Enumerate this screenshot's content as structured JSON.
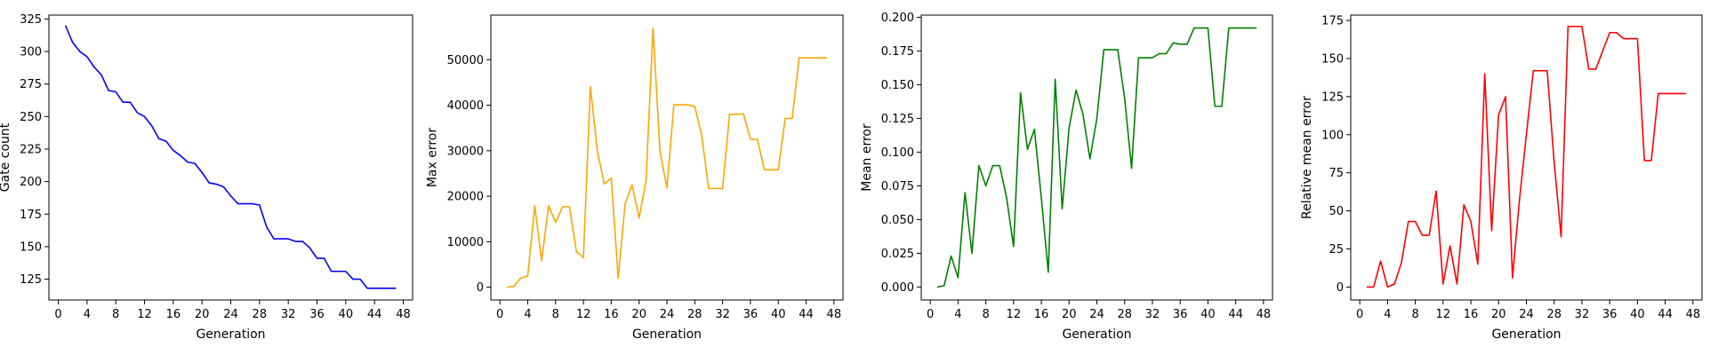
{
  "chart_data": [
    {
      "type": "line",
      "xlabel": "Generation",
      "ylabel": "Gate count",
      "color": "#0000ff",
      "x_ticks": [
        0,
        4,
        8,
        12,
        16,
        20,
        24,
        28,
        32,
        36,
        40,
        44,
        48
      ],
      "y_ticks": [
        125,
        150,
        175,
        200,
        225,
        250,
        275,
        300,
        325
      ],
      "xlim": [
        -1.3,
        49.3
      ],
      "ylim": [
        109,
        328
      ],
      "grid": false,
      "x": [
        1,
        2,
        3,
        4,
        5,
        6,
        7,
        8,
        9,
        10,
        11,
        12,
        13,
        14,
        15,
        16,
        17,
        18,
        19,
        20,
        21,
        22,
        23,
        24,
        25,
        26,
        27,
        28,
        29,
        30,
        31,
        32,
        33,
        34,
        35,
        36,
        37,
        38,
        39,
        40,
        41,
        42,
        43,
        44,
        45,
        46,
        47
      ],
      "y": [
        320,
        307,
        300,
        296,
        288,
        282,
        270,
        269,
        261,
        261,
        253,
        250,
        243,
        233,
        231,
        224,
        220,
        215,
        214,
        207,
        199,
        198,
        196,
        189,
        183,
        183,
        183,
        182,
        165,
        156,
        156,
        156,
        154,
        154,
        149,
        141,
        141,
        131,
        131,
        131,
        125,
        125,
        118,
        118,
        118,
        118,
        118
      ]
    },
    {
      "type": "line",
      "xlabel": "Generation",
      "ylabel": "Max error",
      "color": "#ffa500",
      "x_ticks": [
        0,
        4,
        8,
        12,
        16,
        20,
        24,
        28,
        32,
        36,
        40,
        44,
        48
      ],
      "y_ticks": [
        0,
        10000,
        20000,
        30000,
        40000,
        50000
      ],
      "xlim": [
        -1.3,
        49.3
      ],
      "ylim": [
        -2800,
        59800
      ],
      "grid": false,
      "x": [
        1,
        2,
        3,
        4,
        5,
        6,
        7,
        8,
        9,
        10,
        11,
        12,
        13,
        14,
        15,
        16,
        17,
        18,
        19,
        20,
        21,
        22,
        23,
        24,
        25,
        26,
        27,
        28,
        29,
        30,
        31,
        32,
        33,
        34,
        35,
        36,
        37,
        38,
        39,
        40,
        41,
        42,
        43,
        44,
        45,
        46,
        47
      ],
      "y": [
        0,
        200,
        2000,
        2500,
        17900,
        5800,
        17900,
        14200,
        17700,
        17700,
        7800,
        6500,
        44100,
        30000,
        22700,
        24000,
        2000,
        18400,
        22500,
        15200,
        23500,
        56900,
        29800,
        21800,
        40100,
        40100,
        40100,
        39700,
        33300,
        21700,
        21700,
        21700,
        38000,
        38000,
        38100,
        32500,
        32500,
        25800,
        25800,
        25800,
        37100,
        37100,
        50400,
        50400,
        50400,
        50400,
        50400
      ]
    },
    {
      "type": "line",
      "xlabel": "Generation",
      "ylabel": "Mean error",
      "color": "#008000",
      "x_ticks": [
        0,
        4,
        8,
        12,
        16,
        20,
        24,
        28,
        32,
        36,
        40,
        44,
        48
      ],
      "y_ticks": [
        0.0,
        0.025,
        0.05,
        0.075,
        0.1,
        0.125,
        0.15,
        0.175,
        0.2
      ],
      "xlim": [
        -1.3,
        49.3
      ],
      "ylim": [
        -0.0096,
        0.2016
      ],
      "grid": false,
      "x": [
        1,
        2,
        3,
        4,
        5,
        6,
        7,
        8,
        9,
        10,
        11,
        12,
        13,
        14,
        15,
        16,
        17,
        18,
        19,
        20,
        21,
        22,
        23,
        24,
        25,
        26,
        27,
        28,
        29,
        30,
        31,
        32,
        33,
        34,
        35,
        36,
        37,
        38,
        39,
        40,
        41,
        42,
        43,
        44,
        45,
        46,
        47
      ],
      "y": [
        0,
        0.001,
        0.023,
        0.007,
        0.07,
        0.025,
        0.09,
        0.075,
        0.09,
        0.09,
        0.066,
        0.03,
        0.144,
        0.102,
        0.117,
        0.066,
        0.011,
        0.154,
        0.058,
        0.118,
        0.146,
        0.128,
        0.095,
        0.125,
        0.176,
        0.176,
        0.176,
        0.14,
        0.088,
        0.17,
        0.17,
        0.17,
        0.173,
        0.173,
        0.181,
        0.18,
        0.18,
        0.192,
        0.192,
        0.192,
        0.134,
        0.134,
        0.192,
        0.192,
        0.192,
        0.192,
        0.192
      ]
    },
    {
      "type": "line",
      "xlabel": "Generation",
      "ylabel": "Relative mean error",
      "color": "#ff0000",
      "x_ticks": [
        0,
        4,
        8,
        12,
        16,
        20,
        24,
        28,
        32,
        36,
        40,
        44,
        48
      ],
      "y_ticks": [
        0,
        25,
        50,
        75,
        100,
        125,
        150,
        175
      ],
      "xlim": [
        -1.3,
        49.3
      ],
      "ylim": [
        -8.5,
        178.5
      ],
      "grid": false,
      "x": [
        1,
        2,
        3,
        4,
        5,
        6,
        7,
        8,
        9,
        10,
        11,
        12,
        13,
        14,
        15,
        16,
        17,
        18,
        19,
        20,
        21,
        22,
        23,
        24,
        25,
        26,
        27,
        28,
        29,
        30,
        31,
        32,
        33,
        34,
        35,
        36,
        37,
        38,
        39,
        40,
        41,
        42,
        43,
        44,
        45,
        46,
        47
      ],
      "y": [
        0,
        0,
        17,
        0,
        2,
        16,
        43,
        43,
        34,
        34,
        63,
        2,
        27,
        2,
        54,
        43,
        15,
        140,
        37,
        113,
        125,
        6,
        57,
        100,
        142,
        142,
        142,
        82,
        33,
        171,
        171,
        171,
        143,
        143,
        155,
        167,
        167,
        163,
        163,
        163,
        83,
        83,
        127,
        127,
        127,
        127,
        127
      ]
    }
  ]
}
